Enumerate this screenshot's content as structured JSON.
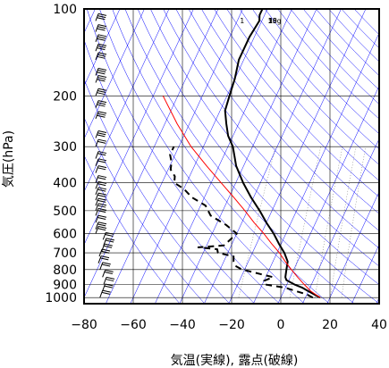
{
  "chart_data": {
    "type": "skew-t",
    "xlabel": "気温(実線), 露点(破線)",
    "ylabel": "気圧(hPa)",
    "x_ticks": [
      -80,
      -60,
      -40,
      -20,
      0,
      20,
      40
    ],
    "y_ticks": [
      100,
      200,
      300,
      400,
      500,
      600,
      700,
      800,
      900,
      1000
    ],
    "xlim": [
      -80,
      40
    ],
    "ylim": [
      1050,
      100
    ],
    "y_scale": "log",
    "mixing_ratio_labels": [
      "1",
      "5",
      "10",
      "15",
      "20g"
    ],
    "colors": {
      "temperature": "#000000",
      "dewpoint": "#000000",
      "parcel": "#ff0000",
      "isotherms_dry_adiabats": "#0000ff",
      "grid": "#000000"
    },
    "series": [
      {
        "name": "temperature",
        "style": "solid",
        "points": [
          [
            1000,
            16
          ],
          [
            975,
            13
          ],
          [
            950,
            10
          ],
          [
            925,
            7
          ],
          [
            900,
            3
          ],
          [
            870,
            -1
          ],
          [
            850,
            -2
          ],
          [
            800,
            -3
          ],
          [
            750,
            -4
          ],
          [
            700,
            -7
          ],
          [
            650,
            -11
          ],
          [
            600,
            -15
          ],
          [
            550,
            -20
          ],
          [
            500,
            -25
          ],
          [
            450,
            -31
          ],
          [
            400,
            -37
          ],
          [
            350,
            -43
          ],
          [
            300,
            -48
          ],
          [
            275,
            -52
          ],
          [
            250,
            -55
          ],
          [
            225,
            -58
          ],
          [
            200,
            -59
          ],
          [
            175,
            -60
          ],
          [
            150,
            -62
          ],
          [
            125,
            -62
          ],
          [
            110,
            -61
          ],
          [
            105,
            -62
          ],
          [
            100,
            -62
          ]
        ]
      },
      {
        "name": "dewpoint",
        "style": "dashed",
        "points": [
          [
            1000,
            13
          ],
          [
            975,
            10
          ],
          [
            950,
            5
          ],
          [
            925,
            0
          ],
          [
            900,
            -9
          ],
          [
            875,
            -10
          ],
          [
            850,
            -7
          ],
          [
            800,
            -21
          ],
          [
            780,
            -24
          ],
          [
            750,
            -26
          ],
          [
            720,
            -27
          ],
          [
            700,
            -34
          ],
          [
            680,
            -35
          ],
          [
            670,
            -43
          ],
          [
            660,
            -33
          ],
          [
            640,
            -32
          ],
          [
            600,
            -30
          ],
          [
            560,
            -36
          ],
          [
            520,
            -44
          ],
          [
            480,
            -48
          ],
          [
            450,
            -55
          ],
          [
            420,
            -60
          ],
          [
            400,
            -65
          ],
          [
            380,
            -66
          ],
          [
            360,
            -69
          ],
          [
            340,
            -70
          ],
          [
            320,
            -72
          ],
          [
            300,
            -72
          ]
        ]
      },
      {
        "name": "parcel",
        "style": "solid",
        "points": [
          [
            1000,
            16
          ],
          [
            950,
            11
          ],
          [
            900,
            7
          ],
          [
            850,
            3
          ],
          [
            800,
            -1
          ],
          [
            750,
            -5
          ],
          [
            700,
            -9
          ],
          [
            650,
            -14
          ],
          [
            600,
            -19
          ],
          [
            550,
            -25
          ],
          [
            500,
            -31
          ],
          [
            450,
            -38
          ],
          [
            400,
            -46
          ],
          [
            350,
            -55
          ],
          [
            300,
            -65
          ],
          [
            250,
            -75
          ],
          [
            200,
            -86
          ]
        ]
      }
    ]
  }
}
